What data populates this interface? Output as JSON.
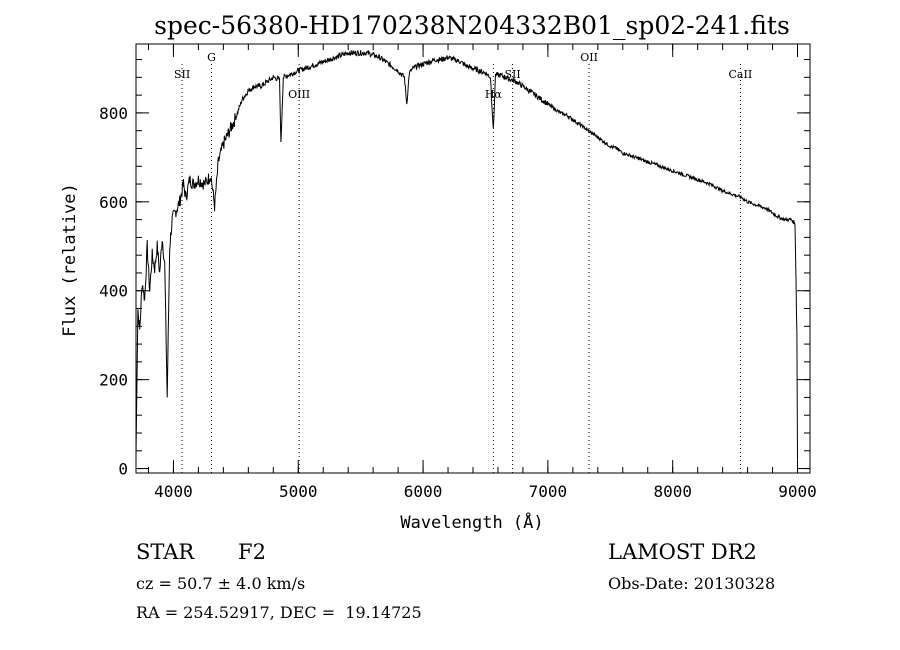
{
  "chart_data": {
    "type": "line",
    "title": "spec-56380-HD170238N204332B01_sp02-241.fits",
    "xlabel": "Wavelength (Å)",
    "ylabel": "Flux (relative)",
    "xlim": [
      3700,
      9100
    ],
    "ylim": [
      -10,
      955
    ],
    "x_ticks": [
      4000,
      5000,
      6000,
      7000,
      8000,
      9000
    ],
    "y_ticks": [
      0,
      200,
      400,
      600,
      800
    ],
    "x_minor_step": 200,
    "y_minor_step": 40,
    "grid": false,
    "series": [
      {
        "x": [
          3700,
          3715,
          3730,
          3750,
          3770,
          3790,
          3810,
          3830,
          3850,
          3870,
          3890,
          3910,
          3930,
          3950,
          3970,
          3990,
          4020,
          4050,
          4080,
          4100,
          4130,
          4160,
          4200,
          4250,
          4300,
          4330,
          4360,
          4400,
          4450,
          4500,
          4550,
          4600,
          4650,
          4700,
          4750,
          4800,
          4850,
          4861,
          4880,
          4920,
          5000,
          5050,
          5100,
          5150,
          5200,
          5250,
          5300,
          5350,
          5400,
          5450,
          5500,
          5550,
          5600,
          5650,
          5700,
          5750,
          5800,
          5850,
          5870,
          5890,
          5920,
          5950,
          6000,
          6050,
          6100,
          6150,
          6200,
          6250,
          6300,
          6350,
          6400,
          6450,
          6500,
          6540,
          6563,
          6580,
          6620,
          6700,
          6750,
          6800,
          6850,
          6900,
          6950,
          7000,
          7050,
          7100,
          7150,
          7200,
          7250,
          7300,
          7350,
          7400,
          7450,
          7500,
          7550,
          7600,
          7650,
          7700,
          7800,
          7900,
          8000,
          8100,
          8200,
          8300,
          8400,
          8500,
          8550,
          8600,
          8650,
          8700,
          8750,
          8800,
          8850,
          8900,
          8950,
          8980,
          8995,
          9000
        ],
        "values": [
          30,
          360,
          310,
          420,
          380,
          500,
          400,
          480,
          450,
          500,
          440,
          520,
          460,
          160,
          500,
          560,
          580,
          600,
          640,
          610,
          650,
          640,
          650,
          640,
          660,
          590,
          690,
          730,
          760,
          790,
          830,
          850,
          860,
          860,
          870,
          880,
          875,
          730,
          880,
          885,
          895,
          900,
          905,
          910,
          915,
          920,
          925,
          930,
          935,
          935,
          935,
          935,
          930,
          925,
          915,
          905,
          895,
          880,
          820,
          890,
          900,
          905,
          910,
          915,
          920,
          920,
          925,
          920,
          915,
          905,
          900,
          895,
          890,
          880,
          760,
          885,
          885,
          875,
          870,
          860,
          850,
          840,
          830,
          820,
          810,
          800,
          795,
          785,
          775,
          765,
          755,
          745,
          735,
          725,
          720,
          710,
          705,
          700,
          690,
          680,
          670,
          660,
          650,
          640,
          625,
          615,
          610,
          600,
          595,
          590,
          585,
          575,
          565,
          560,
          560,
          550,
          300,
          20
        ]
      }
    ],
    "line_markers": [
      {
        "label": "SII",
        "x": 4069
      },
      {
        "label": "G",
        "x": 4305
      },
      {
        "label": "OIII",
        "x": 5007
      },
      {
        "label": "Hα",
        "x": 6563
      },
      {
        "label": "SII",
        "x": 6717
      },
      {
        "label": "OII",
        "x": 7330
      },
      {
        "label": "CaII",
        "x": 8542
      }
    ],
    "line_color": "#000000",
    "marker_color": "#000000"
  },
  "info": {
    "object_type": "STAR",
    "spectral_class": "F2",
    "survey": "LAMOST DR2",
    "velocity": "cz = 50.7 ± 4.0 km/s",
    "obs_date": "Obs-Date: 20130328",
    "coords": "RA = 254.52917, DEC =  19.14725"
  }
}
